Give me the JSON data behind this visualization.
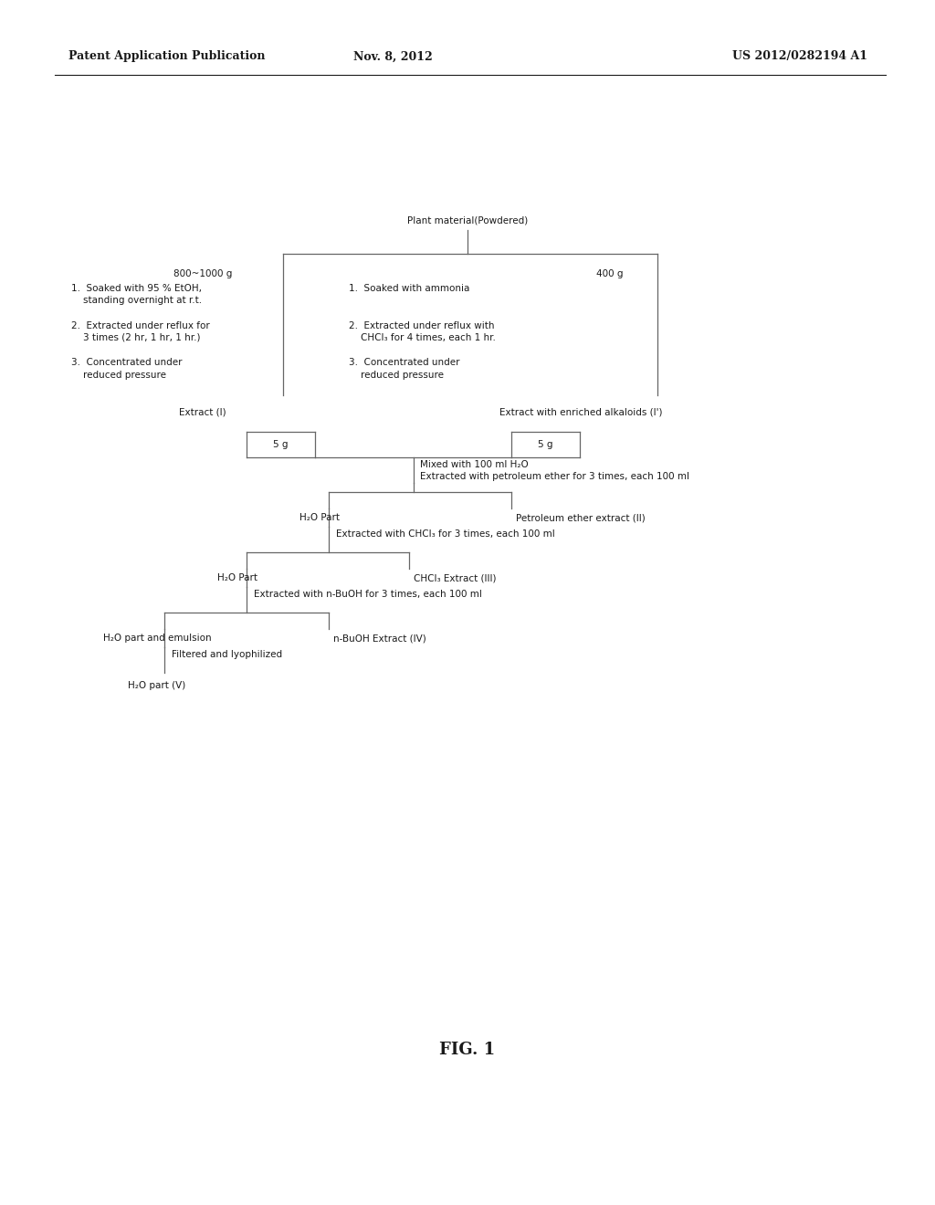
{
  "bg_color": "#ffffff",
  "text_color": "#1a1a1a",
  "line_color": "#666666",
  "header_left": "Patent Application Publication",
  "header_center": "Nov. 8, 2012",
  "header_right": "US 2012/0282194 A1",
  "figure_label": "FIG. 1",
  "font_size_main": 7.5,
  "font_size_header": 9.0,
  "font_size_fig": 13
}
